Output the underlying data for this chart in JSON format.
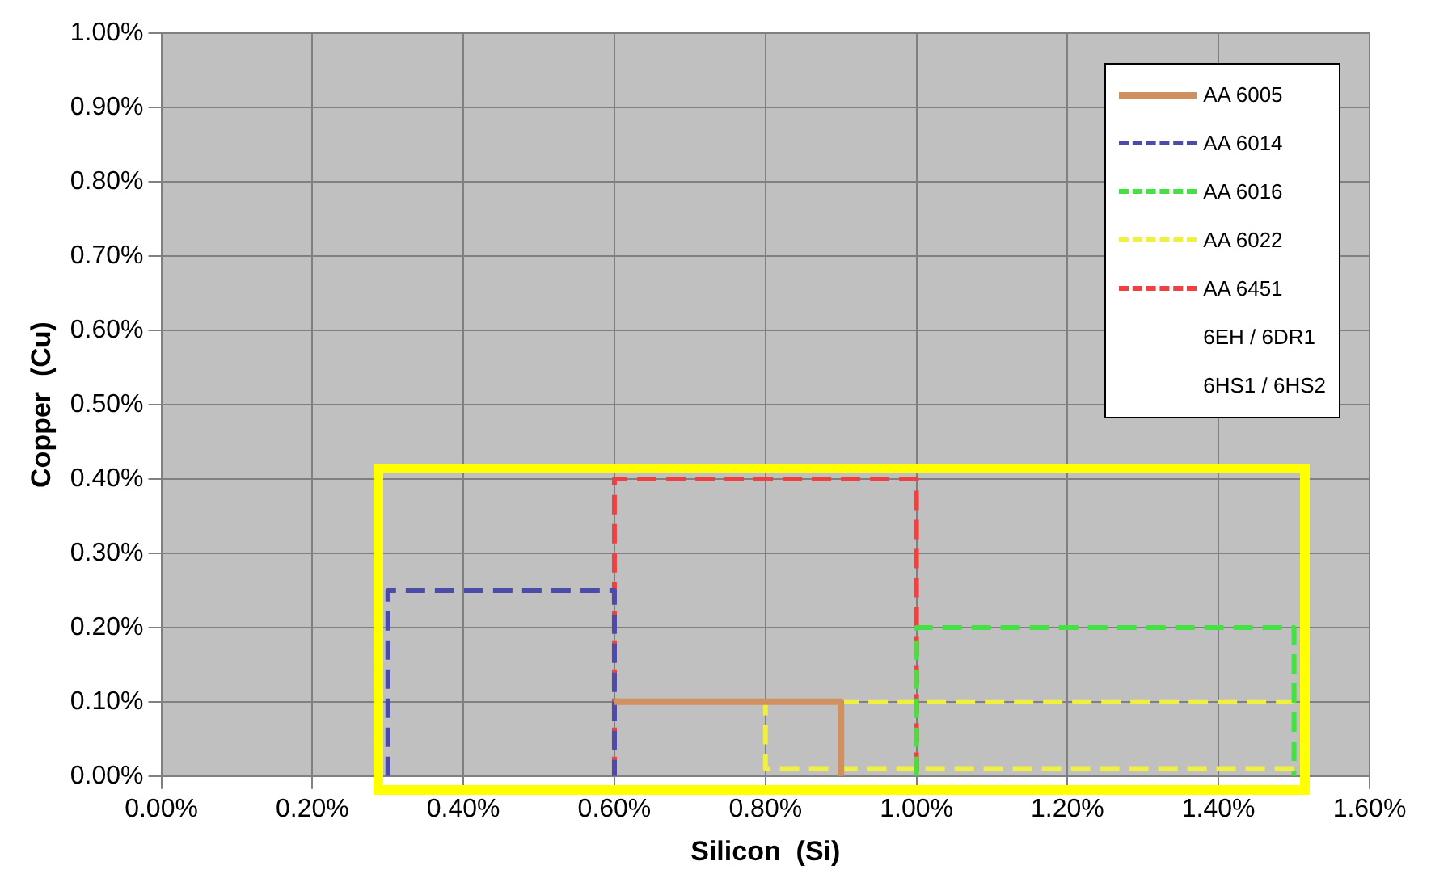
{
  "chart_data": {
    "type": "line",
    "xlabel": "Silicon  (Si)",
    "ylabel": "Copper  (Cu)",
    "xlim": [
      0,
      1.6
    ],
    "ylim": [
      0,
      1.0
    ],
    "xticks": [
      {
        "value": 0,
        "label": "0.00%"
      },
      {
        "value": 0.2,
        "label": "0.20%"
      },
      {
        "value": 0.4,
        "label": "0.40%"
      },
      {
        "value": 0.6,
        "label": "0.60%"
      },
      {
        "value": 0.8,
        "label": "0.80%"
      },
      {
        "value": 1.0,
        "label": "1.00%"
      },
      {
        "value": 1.2,
        "label": "1.20%"
      },
      {
        "value": 1.4,
        "label": "1.40%"
      },
      {
        "value": 1.6,
        "label": "1.60%"
      }
    ],
    "yticks": [
      {
        "value": 0,
        "label": "0.00%"
      },
      {
        "value": 0.1,
        "label": "0.10%"
      },
      {
        "value": 0.2,
        "label": "0.20%"
      },
      {
        "value": 0.3,
        "label": "0.30%"
      },
      {
        "value": 0.4,
        "label": "0.40%"
      },
      {
        "value": 0.5,
        "label": "0.50%"
      },
      {
        "value": 0.6,
        "label": "0.60%"
      },
      {
        "value": 0.7,
        "label": "0.70%"
      },
      {
        "value": 0.8,
        "label": "0.80%"
      },
      {
        "value": 0.9,
        "label": "0.90%"
      },
      {
        "value": 1.0,
        "label": "1.00%"
      }
    ],
    "grid": true,
    "legend": "top right",
    "marker": "none",
    "series": [
      {
        "name": "AA 6005",
        "color": "#d09060",
        "line_style": "solid",
        "x": [
          0.6,
          0.9,
          0.9
        ],
        "values": [
          0.1,
          0.1,
          0
        ]
      },
      {
        "name": "AA 6014",
        "color": "#4b4ba8",
        "line_style": "dashed",
        "x": [
          0.3,
          0.3,
          0.6,
          0.6
        ],
        "values": [
          0,
          0.25,
          0.25,
          0
        ]
      },
      {
        "name": "AA 6016",
        "color": "#44e044",
        "line_style": "dashed",
        "x": [
          1.0,
          1.0,
          1.5,
          1.5
        ],
        "values": [
          0,
          0.2,
          0.2,
          0
        ]
      },
      {
        "name": "AA 6022",
        "color": "#f0f040",
        "line_style": "dashed",
        "x": [
          1.5,
          0.8,
          0.8,
          1.5
        ],
        "values": [
          0.01,
          0.01,
          0.1,
          0.1
        ]
      },
      {
        "name": "AA 6451",
        "color": "#f04040",
        "line_style": "dashed",
        "x": [
          0.6,
          0.6,
          1.0,
          1.0
        ],
        "values": [
          0,
          0.4,
          0.4,
          0
        ]
      }
    ],
    "annotations": [
      "6EH / 6DR1",
      "6HS1 / 6HS2"
    ]
  }
}
